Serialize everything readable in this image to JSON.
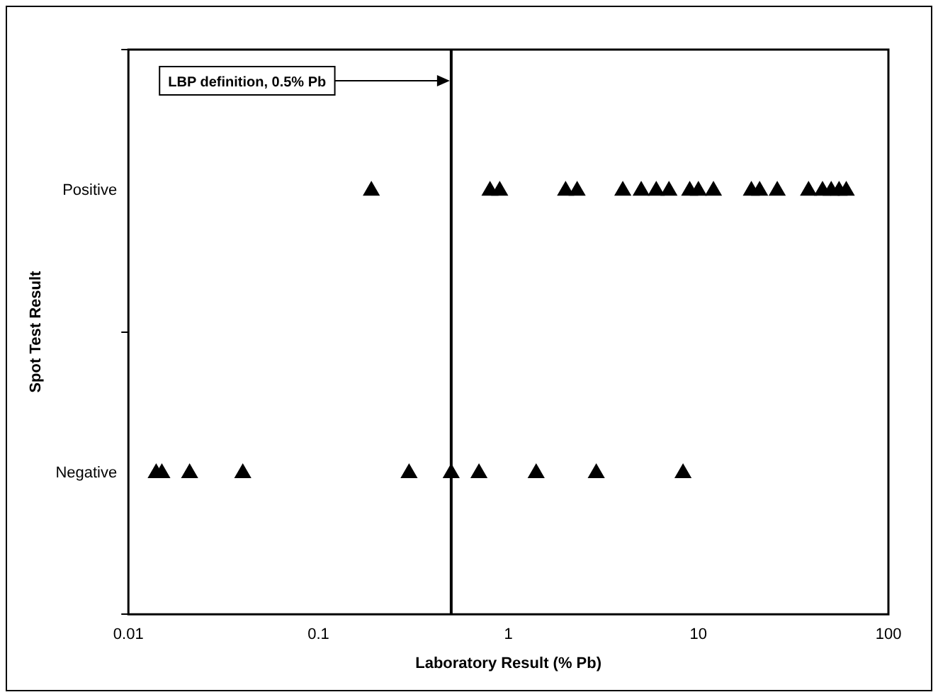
{
  "chart_data": {
    "type": "scatter",
    "orientation": "horizontal",
    "xlabel": "Laboratory Result (% Pb)",
    "ylabel": "Spot Test Result",
    "log": "x",
    "xlim": [
      0.01,
      100
    ],
    "xticks": [
      0.01,
      0.1,
      1,
      10,
      100
    ],
    "categories": [
      "Positive",
      "Negative"
    ],
    "marker": "triangle",
    "grid": false,
    "legend": false,
    "series": [
      {
        "color": "#000000",
        "x": [
          "Positive",
          "Positive",
          "Positive",
          "Positive",
          "Positive",
          "Positive",
          "Positive",
          "Positive",
          "Positive",
          "Positive",
          "Positive",
          "Positive",
          "Positive",
          "Positive",
          "Positive",
          "Positive",
          "Positive",
          "Positive",
          "Positive",
          "Positive"
        ],
        "values": [
          0.19,
          0.8,
          0.9,
          2,
          2.3,
          4,
          5,
          6,
          7,
          9,
          10,
          12,
          19,
          21,
          26,
          38,
          45,
          50,
          55,
          60
        ]
      },
      {
        "color": "#000000",
        "x": [
          "Negative",
          "Negative",
          "Negative",
          "Negative",
          "Negative",
          "Negative",
          "Negative",
          "Negative",
          "Negative",
          "Negative"
        ],
        "values": [
          0.014,
          0.015,
          0.021,
          0.04,
          0.3,
          0.5,
          0.7,
          1.4,
          2.9,
          8.3
        ]
      }
    ],
    "ref_lines": [
      {
        "axis": "x",
        "value": 0.5,
        "label": "LBP definition, 0.5% Pb",
        "color": "#000000"
      }
    ]
  }
}
